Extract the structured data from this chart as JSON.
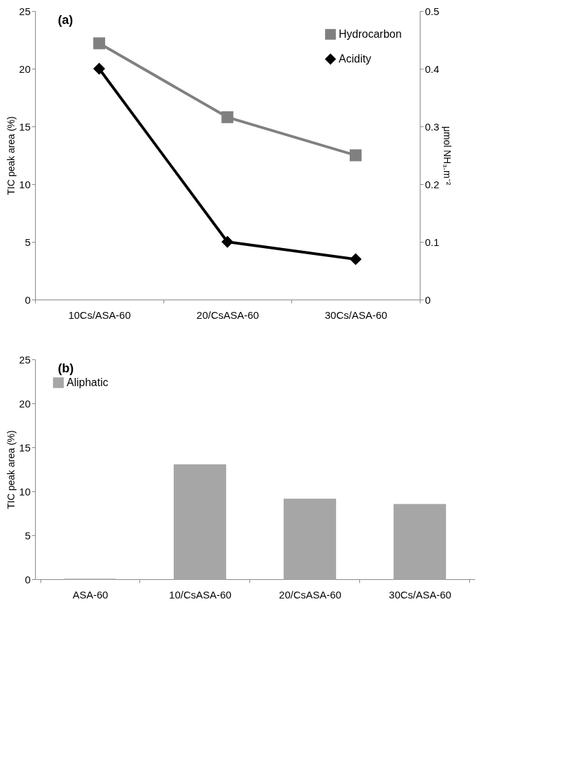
{
  "chart_data": [
    {
      "type": "line",
      "title": "(a)",
      "ylabel": "TIC peak  area (%)",
      "y2label": "μmol NH₃.m⁻²",
      "categories": [
        "10Cs/ASA-60",
        "20/CsASA-60",
        "30Cs/ASA-60"
      ],
      "series": [
        {
          "name": "Hydrocarbon",
          "color": "#808080",
          "marker": "square",
          "values": [
            22.2,
            15.8,
            12.5
          ]
        },
        {
          "name": "Acidity",
          "color": "#000000",
          "marker": "diamond",
          "axis": "y2",
          "values": [
            0.4,
            0.1,
            0.07
          ]
        }
      ],
      "ylim": [
        0,
        25
      ],
      "yticks": [
        0,
        5,
        10,
        15,
        20,
        25
      ],
      "y2lim": [
        0,
        0.5
      ],
      "y2ticks": [
        0,
        0.1,
        0.2,
        0.3,
        0.4,
        0.5
      ],
      "grid": false,
      "legend": "top right"
    },
    {
      "type": "bar",
      "title": "(b)",
      "ylabel": "TIC peak area (%)",
      "categories": [
        "ASA-60",
        "10/CsASA-60",
        "20/CsASA-60",
        "30Cs/ASA-60"
      ],
      "series": [
        {
          "name": "Aliphatic",
          "color": "#a6a6a6",
          "values": [
            0,
            13.0,
            9.1,
            8.5
          ]
        }
      ],
      "ylim": [
        0,
        25
      ],
      "yticks": [
        0,
        5,
        10,
        15,
        20,
        25
      ],
      "grid": false,
      "legend": "top left"
    }
  ]
}
